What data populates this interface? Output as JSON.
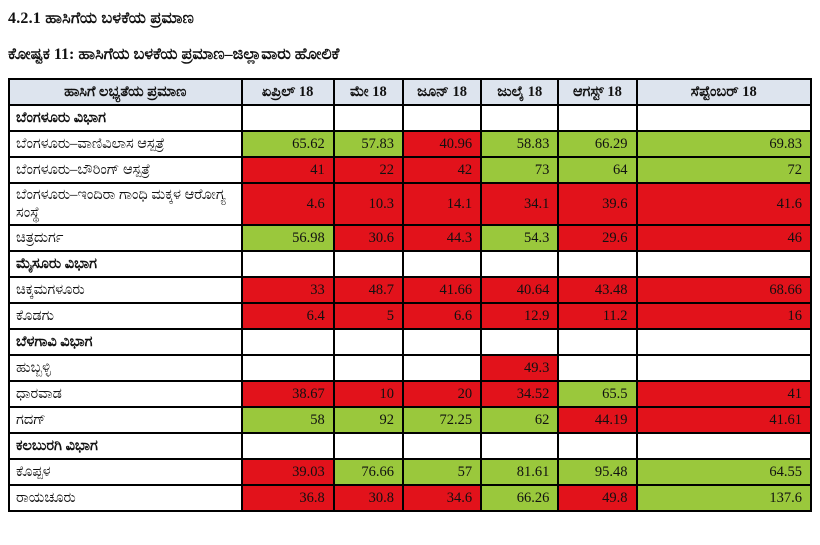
{
  "page": {
    "heading": "4.2.1 ಹಾಸಿಗೆಯ ಬಳಕೆಯ ಪ್ರಮಾಣ",
    "caption": "ಕೋಷ್ಟಕ 11: ಹಾಸಿಗೆಯ ಬಳಕೆಯ ಪ್ರಮಾಣ–ಜಿಲ್ಲಾವಾರು ಹೋಲಿಕೆ"
  },
  "colors": {
    "good": "#9ac83c",
    "bad": "#e2121b",
    "header_bg": "#dde4ee",
    "border": "#000000"
  },
  "table": {
    "columns": [
      "ಹಾಸಿಗೆ ಲಭ್ಯತೆಯ ಪ್ರಮಾಣ",
      "ಏಪ್ರಿಲ್ 18",
      "ಮೇ 18",
      "ಜೂನ್ 18",
      "ಜುಲೈ 18",
      "ಆಗಸ್ಟ್ 18",
      "ಸೆಪ್ಟೆಂಬರ್ 18"
    ],
    "rows": [
      {
        "name": "ಬೆಂಗಳೂರು ವಿಭಾಗ",
        "type": "division",
        "values": [
          null,
          null,
          null,
          null,
          null,
          null
        ]
      },
      {
        "name": "ಬೆಂಗಳೂರು–ವಾಣಿವಿಲಾಸ ಆಸ್ಪತ್ರೆ",
        "type": "facility",
        "values": [
          {
            "v": "65.62",
            "c": "good"
          },
          {
            "v": "57.83",
            "c": "good"
          },
          {
            "v": "40.96",
            "c": "bad"
          },
          {
            "v": "58.83",
            "c": "good"
          },
          {
            "v": "66.29",
            "c": "good"
          },
          {
            "v": "69.83",
            "c": "good"
          }
        ]
      },
      {
        "name": "ಬೆಂಗಳೂರು–ಬೌರಿಂಗ್ ಆಸ್ಪತ್ರೆ",
        "type": "facility",
        "values": [
          {
            "v": "41",
            "c": "bad"
          },
          {
            "v": "22",
            "c": "bad"
          },
          {
            "v": "42",
            "c": "bad"
          },
          {
            "v": "73",
            "c": "good"
          },
          {
            "v": "64",
            "c": "good"
          },
          {
            "v": "72",
            "c": "good"
          }
        ]
      },
      {
        "name": "ಬೆಂಗಳೂರು–ಇಂದಿರಾ ಗಾಂಧಿ ಮಕ್ಕಳ ಆರೋಗ್ಯ ಸಂಸ್ಥೆ",
        "type": "facility",
        "values": [
          {
            "v": "4.6",
            "c": "bad"
          },
          {
            "v": "10.3",
            "c": "bad"
          },
          {
            "v": "14.1",
            "c": "bad"
          },
          {
            "v": "34.1",
            "c": "bad"
          },
          {
            "v": "39.6",
            "c": "bad"
          },
          {
            "v": "41.6",
            "c": "bad"
          }
        ]
      },
      {
        "name": "ಚಿತ್ರದುರ್ಗ",
        "type": "facility",
        "values": [
          {
            "v": "56.98",
            "c": "good"
          },
          {
            "v": "30.6",
            "c": "bad"
          },
          {
            "v": "44.3",
            "c": "bad"
          },
          {
            "v": "54.3",
            "c": "good"
          },
          {
            "v": "29.6",
            "c": "bad"
          },
          {
            "v": "46",
            "c": "bad"
          }
        ]
      },
      {
        "name": "ಮೈಸೂರು ವಿಭಾಗ",
        "type": "division",
        "values": [
          null,
          null,
          null,
          null,
          null,
          null
        ]
      },
      {
        "name": "ಚಿಕ್ಕಮಗಳೂರು",
        "type": "facility",
        "values": [
          {
            "v": "33",
            "c": "bad"
          },
          {
            "v": "48.7",
            "c": "bad"
          },
          {
            "v": "41.66",
            "c": "bad"
          },
          {
            "v": "40.64",
            "c": "bad"
          },
          {
            "v": "43.48",
            "c": "bad"
          },
          {
            "v": "68.66",
            "c": "bad"
          }
        ]
      },
      {
        "name": "ಕೊಡಗು",
        "type": "facility",
        "values": [
          {
            "v": "6.4",
            "c": "bad"
          },
          {
            "v": "5",
            "c": "bad"
          },
          {
            "v": "6.6",
            "c": "bad"
          },
          {
            "v": "12.9",
            "c": "bad"
          },
          {
            "v": "11.2",
            "c": "bad"
          },
          {
            "v": "16",
            "c": "bad"
          }
        ]
      },
      {
        "name": "ಬೆಳಗಾವಿ ವಿಭಾಗ",
        "type": "division",
        "values": [
          null,
          null,
          null,
          null,
          null,
          null
        ]
      },
      {
        "name": "ಹುಬ್ಬಳ್ಳಿ",
        "type": "facility",
        "values": [
          null,
          null,
          null,
          {
            "v": "49.3",
            "c": "bad"
          },
          null,
          null
        ]
      },
      {
        "name": "ಧಾರವಾಡ",
        "type": "facility",
        "values": [
          {
            "v": "38.67",
            "c": "bad"
          },
          {
            "v": "10",
            "c": "bad"
          },
          {
            "v": "20",
            "c": "bad"
          },
          {
            "v": "34.52",
            "c": "bad"
          },
          {
            "v": "65.5",
            "c": "good"
          },
          {
            "v": "41",
            "c": "bad"
          }
        ]
      },
      {
        "name": "ಗದಗ್",
        "type": "facility",
        "values": [
          {
            "v": "58",
            "c": "good"
          },
          {
            "v": "92",
            "c": "good"
          },
          {
            "v": "72.25",
            "c": "good"
          },
          {
            "v": "62",
            "c": "good"
          },
          {
            "v": "44.19",
            "c": "bad"
          },
          {
            "v": "41.61",
            "c": "bad"
          }
        ]
      },
      {
        "name": "ಕಲಬುರಗಿ ವಿಭಾಗ",
        "type": "division",
        "values": [
          null,
          null,
          null,
          null,
          null,
          null
        ]
      },
      {
        "name": "ಕೊಪ್ಪಳ",
        "type": "facility",
        "values": [
          {
            "v": "39.03",
            "c": "bad"
          },
          {
            "v": "76.66",
            "c": "good"
          },
          {
            "v": "57",
            "c": "good"
          },
          {
            "v": "81.61",
            "c": "good"
          },
          {
            "v": "95.48",
            "c": "good"
          },
          {
            "v": "64.55",
            "c": "good"
          }
        ]
      },
      {
        "name": "ರಾಯಚೂರು",
        "type": "facility",
        "values": [
          {
            "v": "36.8",
            "c": "bad"
          },
          {
            "v": "30.8",
            "c": "bad"
          },
          {
            "v": "34.6",
            "c": "bad"
          },
          {
            "v": "66.26",
            "c": "good"
          },
          {
            "v": "49.8",
            "c": "bad"
          },
          {
            "v": "137.6",
            "c": "good"
          }
        ]
      }
    ]
  }
}
